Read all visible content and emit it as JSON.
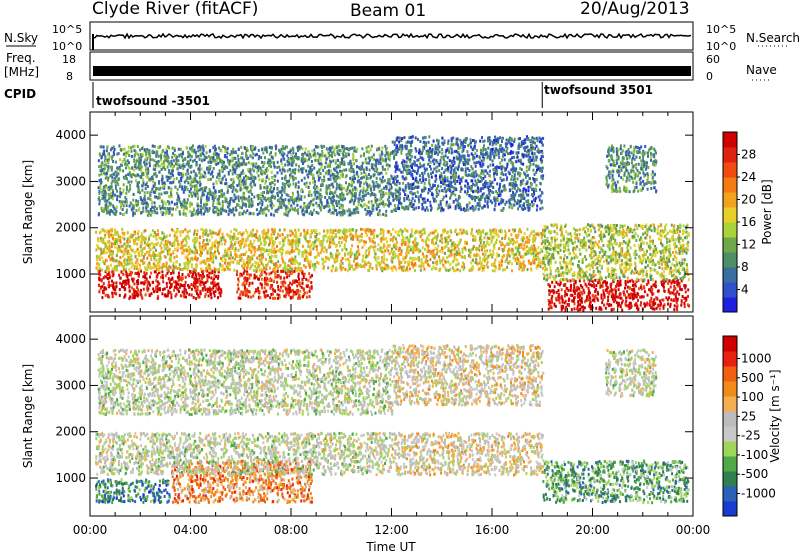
{
  "header": {
    "station": "Clyde River (fitACF)",
    "beam": "Beam 01",
    "date": "20/Aug/2013"
  },
  "aux_panels": {
    "nsky": {
      "label": "N.Sky",
      "ticks": [
        "10^5",
        "10^0"
      ]
    },
    "nsearch": {
      "label": "N.Search",
      "ticks": [
        "10^5",
        "10^0"
      ]
    },
    "freq": {
      "label_line1": "Freq.",
      "label_line2": "[MHz]",
      "ticks": [
        "18",
        "8"
      ]
    },
    "nave": {
      "label": "Nave",
      "ticks": [
        "60",
        "0"
      ]
    },
    "cpid": {
      "label": "CPID",
      "segments": [
        {
          "name": "twofsound -3501",
          "start_hour": 0
        },
        {
          "name": "twofsound 3501",
          "start_hour": 18
        }
      ]
    }
  },
  "chart_data": [
    {
      "type": "heatmap",
      "name": "power",
      "x": {
        "label": "Time UT",
        "range_hours": [
          0,
          24
        ],
        "tick_labels": [
          "00:00",
          "04:00",
          "08:00",
          "12:00",
          "16:00",
          "20:00",
          "00:00"
        ]
      },
      "y": {
        "label": "Slant Range [km]",
        "range": [
          180,
          4500
        ],
        "ticks": [
          1000,
          2000,
          3000,
          4000
        ]
      },
      "colorbar": {
        "label": "Power [dB]",
        "range": [
          0,
          32
        ],
        "ticks": [
          4,
          8,
          12,
          16,
          20,
          24,
          28
        ]
      },
      "colors": [
        "#1f1fe0",
        "#2f50c8",
        "#3b6ea0",
        "#4f8f64",
        "#6fa84a",
        "#a9d338",
        "#e8d028",
        "#f2a21c",
        "#f47a14",
        "#f04a10",
        "#e02010",
        "#d00000"
      ],
      "regions": [
        {
          "t0": 0.3,
          "t1": 5.2,
          "r0": 500,
          "r1": 1100,
          "level": 30
        },
        {
          "t0": 5.8,
          "t1": 8.8,
          "r0": 500,
          "r1": 1100,
          "level": 28
        },
        {
          "t0": 0.2,
          "t1": 18.0,
          "r0": 1100,
          "r1": 2000,
          "level": 18
        },
        {
          "t0": 18.2,
          "t1": 23.8,
          "r0": 250,
          "r1": 900,
          "level": 30
        },
        {
          "t0": 18.0,
          "t1": 23.8,
          "r0": 900,
          "r1": 2100,
          "level": 14
        },
        {
          "t0": 0.3,
          "t1": 12.0,
          "r0": 2300,
          "r1": 3800,
          "level": 8
        },
        {
          "t0": 12.0,
          "t1": 18.0,
          "r0": 2400,
          "r1": 4000,
          "level": 7
        },
        {
          "t0": 20.5,
          "t1": 22.5,
          "r0": 2800,
          "r1": 3800,
          "level": 8
        }
      ]
    },
    {
      "type": "heatmap",
      "name": "velocity",
      "x": {
        "label": "Time UT",
        "range_hours": [
          0,
          24
        ],
        "tick_labels": [
          "00:00",
          "04:00",
          "08:00",
          "12:00",
          "16:00",
          "20:00",
          "00:00"
        ]
      },
      "y": {
        "label": "Slant Range [km]",
        "range": [
          180,
          4500
        ],
        "ticks": [
          1000,
          2000,
          3000,
          4000
        ]
      },
      "colorbar": {
        "label": "Velocity [m s⁻¹]",
        "ticks": [
          "1000",
          "500",
          "100",
          "25",
          "-25",
          "-100",
          "-500",
          "-1000"
        ]
      },
      "colors": [
        "#1a3bd0",
        "#2a62b8",
        "#2f7f50",
        "#4fa84a",
        "#9fd65a",
        "#c8c8c8",
        "#bcbcbc",
        "#f4b050",
        "#f28a18",
        "#f06010",
        "#e82010",
        "#d00000"
      ],
      "regions": [
        {
          "t0": 0.2,
          "t1": 3.2,
          "r0": 500,
          "r1": 1000,
          "level": 2
        },
        {
          "t0": 3.2,
          "t1": 8.8,
          "r0": 500,
          "r1": 1400,
          "level": 8
        },
        {
          "t0": 0.2,
          "t1": 12.0,
          "r0": 1100,
          "r1": 2000,
          "level": 5
        },
        {
          "t0": 12.0,
          "t1": 18.0,
          "r0": 1100,
          "r1": 2000,
          "level": 6
        },
        {
          "t0": 18.0,
          "t1": 23.8,
          "r0": 500,
          "r1": 1400,
          "level": 3
        },
        {
          "t0": 0.3,
          "t1": 12.0,
          "r0": 2400,
          "r1": 3800,
          "level": 5
        },
        {
          "t0": 12.0,
          "t1": 18.0,
          "r0": 2600,
          "r1": 3900,
          "level": 6
        },
        {
          "t0": 20.5,
          "t1": 22.5,
          "r0": 2800,
          "r1": 3800,
          "level": 5
        }
      ]
    }
  ]
}
